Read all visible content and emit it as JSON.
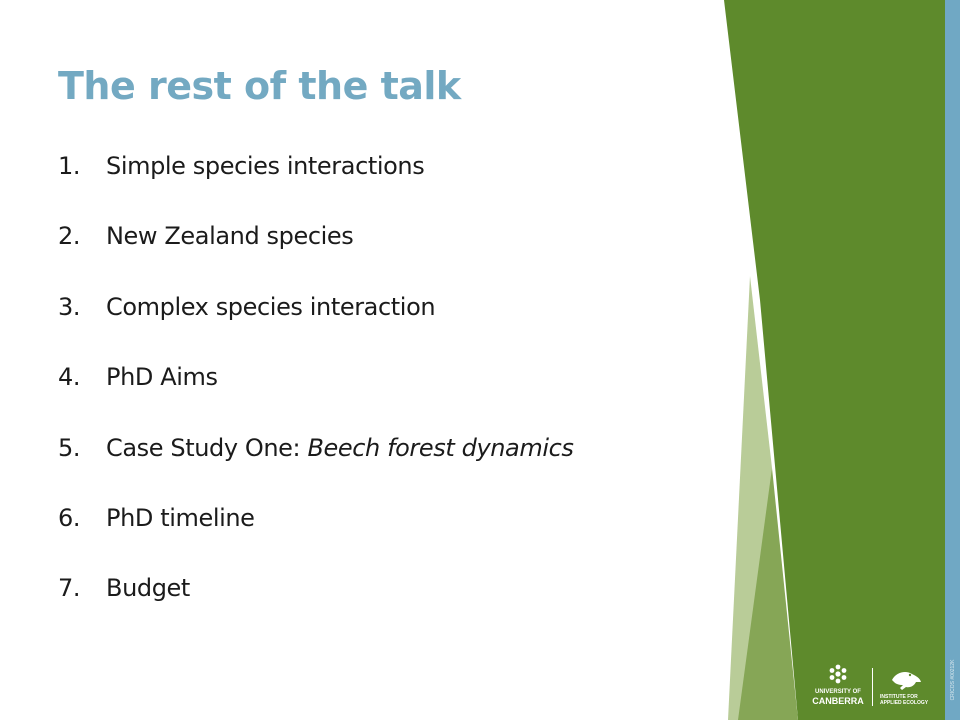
{
  "slide": {
    "title": "The rest of the talk",
    "title_color": "#73a9c2",
    "items": [
      {
        "number": "1.",
        "text": "Simple species interactions",
        "italic": ""
      },
      {
        "number": "2.",
        "text": "New Zealand species",
        "italic": ""
      },
      {
        "number": "3.",
        "text": "Complex species interaction",
        "italic": ""
      },
      {
        "number": "4.",
        "text": "PhD Aims",
        "italic": ""
      },
      {
        "number": "5.",
        "text": "Case Study One: ",
        "italic": "Beech forest dynamics"
      },
      {
        "number": "6.",
        "text": "PhD timeline",
        "italic": ""
      },
      {
        "number": "7.",
        "text": "Budget",
        "italic": ""
      }
    ]
  },
  "branding": {
    "uc_line1": "UNIVERSITY OF",
    "uc_line2": "CANBERRA",
    "iae_line1": "INSTITUTE FOR",
    "iae_line2": "APPLIED ECOLOGY",
    "uc_logo_icon": "snowflake-icon",
    "iae_logo_icon": "frog-icon",
    "side_code": "CRICOS #00212K"
  },
  "colors": {
    "green": "#5e8a2c",
    "light_green": "#86a656",
    "pale_green": "#b6c994",
    "blue_stripe": "#70a8c4",
    "text": "#1b1b1b"
  }
}
